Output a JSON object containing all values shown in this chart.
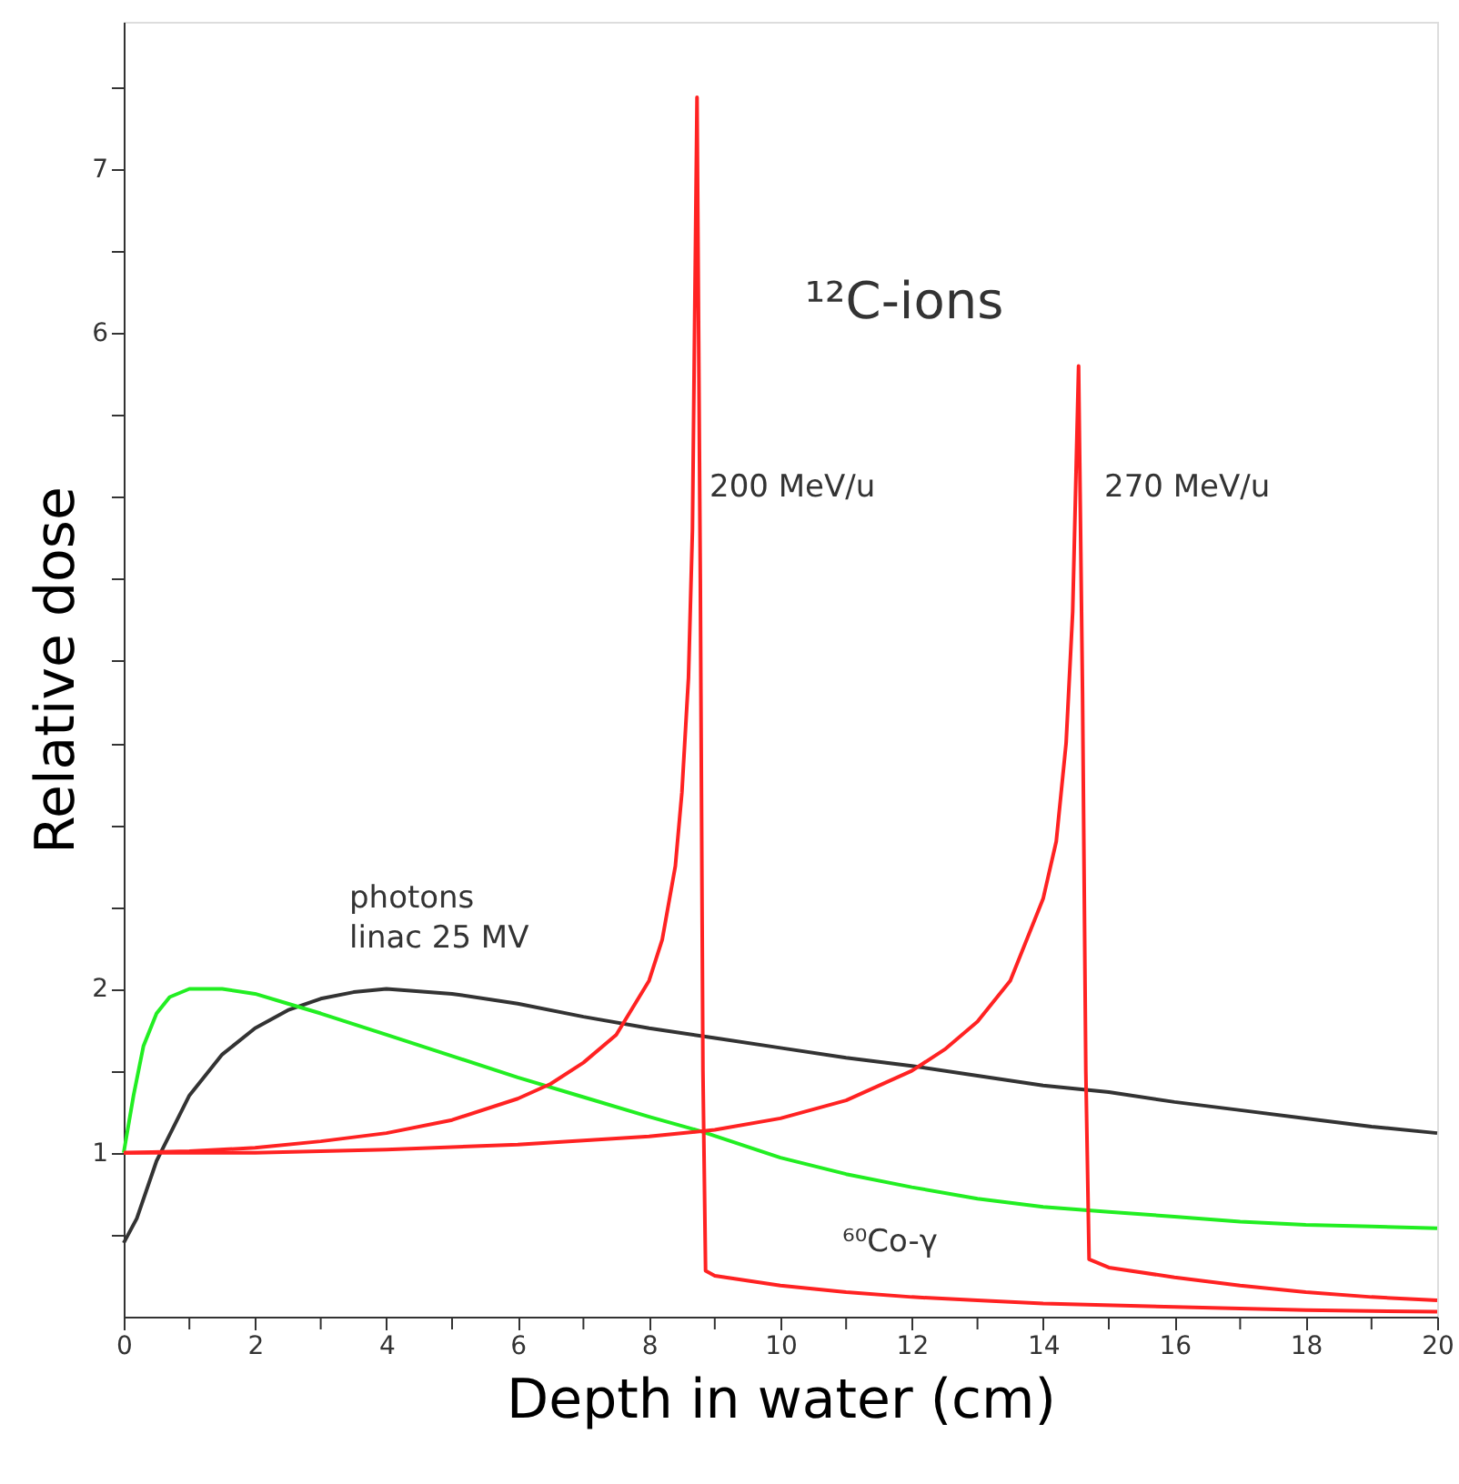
{
  "chart_data": {
    "type": "line",
    "xlabel": "Depth in water (cm)",
    "ylabel": "Relative dose",
    "xlim": [
      0,
      20
    ],
    "ylim": [
      0,
      7.9
    ],
    "xticks": [
      0,
      {
        "value": 1,
        "label": null
      },
      2,
      {
        "value": 3,
        "label": null
      },
      4,
      {
        "value": 5,
        "label": null
      },
      6,
      {
        "value": 7,
        "label": null
      },
      8,
      {
        "value": 9,
        "label": null
      },
      10,
      {
        "value": 11,
        "label": null
      },
      12,
      {
        "value": 13,
        "label": null
      },
      14,
      {
        "value": 15,
        "label": null
      },
      16,
      {
        "value": 17,
        "label": null
      },
      18,
      {
        "value": 19,
        "label": null
      },
      20
    ],
    "yticks": [
      {
        "value": 0.5,
        "label": null
      },
      1,
      {
        "value": 1.5,
        "label": null
      },
      2,
      {
        "value": 2.5,
        "label": null
      },
      {
        "value": 3,
        "label": null
      },
      {
        "value": 3.5,
        "label": null
      },
      {
        "value": 4,
        "label": null
      },
      {
        "value": 4.5,
        "label": null
      },
      {
        "value": 5,
        "label": null
      },
      {
        "value": 5.5,
        "label": null
      },
      6,
      {
        "value": 6.5,
        "label": null
      },
      7,
      {
        "value": 7.5,
        "label": null
      }
    ],
    "grid": false,
    "marker": "none",
    "line_style": "solid",
    "series": [
      {
        "color": "#333333",
        "x": [
          0,
          0.2,
          0.5,
          1,
          1.5,
          2,
          2.5,
          3,
          3.5,
          4,
          5,
          6,
          7,
          8,
          9,
          10,
          11,
          12,
          13,
          14,
          15,
          16,
          17,
          18,
          19,
          20
        ],
        "values": [
          0.45,
          0.6,
          0.95,
          1.35,
          1.6,
          1.76,
          1.87,
          1.94,
          1.98,
          2.0,
          1.97,
          1.91,
          1.83,
          1.76,
          1.7,
          1.64,
          1.58,
          1.53,
          1.47,
          1.41,
          1.37,
          1.31,
          1.26,
          1.21,
          1.16,
          1.12
        ]
      },
      {
        "color": "#22ee22",
        "x": [
          0,
          0.15,
          0.3,
          0.5,
          0.7,
          1,
          1.5,
          2,
          2.5,
          3,
          4,
          5,
          6,
          7,
          8,
          8.8,
          10,
          11,
          12,
          13,
          14,
          15,
          16,
          17,
          18,
          19,
          20
        ],
        "values": [
          1.0,
          1.35,
          1.65,
          1.85,
          1.95,
          2.0,
          2.0,
          1.97,
          1.91,
          1.85,
          1.72,
          1.59,
          1.46,
          1.34,
          1.22,
          1.13,
          0.97,
          0.87,
          0.79,
          0.72,
          0.67,
          0.64,
          0.61,
          0.58,
          0.56,
          0.55,
          0.54
        ]
      },
      {
        "color": "#ff2222",
        "x": [
          0,
          1,
          2,
          3,
          4,
          5,
          6,
          6.5,
          7,
          7.5,
          8,
          8.2,
          8.4,
          8.5,
          8.6,
          8.66,
          8.73,
          8.78,
          8.82,
          8.86,
          9,
          10,
          11,
          12,
          13,
          14,
          16,
          18,
          20
        ],
        "values": [
          1.0,
          1.01,
          1.03,
          1.07,
          1.12,
          1.2,
          1.33,
          1.42,
          1.55,
          1.72,
          2.05,
          2.3,
          2.75,
          3.2,
          3.9,
          4.8,
          7.44,
          4.5,
          1.5,
          0.28,
          0.25,
          0.19,
          0.15,
          0.12,
          0.1,
          0.08,
          0.06,
          0.04,
          0.03
        ]
      },
      {
        "color": "#ff2222",
        "x": [
          0,
          2,
          4,
          6,
          8,
          9,
          10,
          11,
          12,
          12.5,
          13,
          13.5,
          14,
          14.2,
          14.35,
          14.45,
          14.54,
          14.6,
          14.65,
          14.7,
          15,
          16,
          17,
          18,
          19,
          20
        ],
        "values": [
          1.0,
          1.0,
          1.02,
          1.05,
          1.1,
          1.14,
          1.21,
          1.32,
          1.5,
          1.63,
          1.8,
          2.05,
          2.55,
          2.9,
          3.5,
          4.3,
          5.8,
          3.8,
          1.5,
          0.35,
          0.3,
          0.24,
          0.19,
          0.15,
          0.12,
          0.1
        ]
      }
    ],
    "annotations": [
      "photons\nlinac 25 MV",
      "⁶⁰Co-γ",
      "200 MeV/u",
      "270 MeV/u",
      "¹²C-ions"
    ]
  }
}
